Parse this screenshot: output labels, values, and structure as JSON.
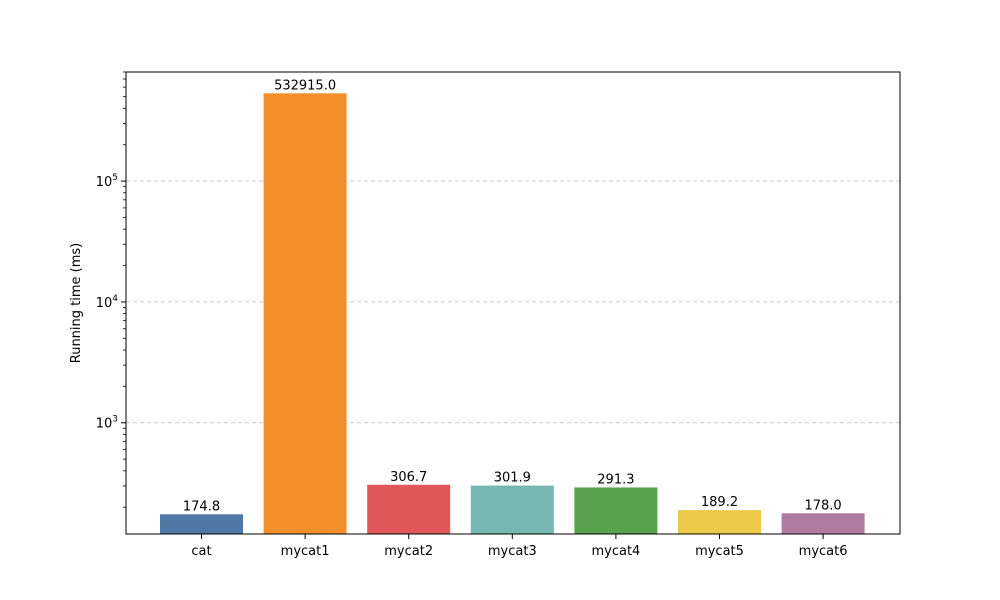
{
  "chart_data": {
    "type": "bar",
    "categories": [
      "cat",
      "mycat1",
      "mycat2",
      "mycat3",
      "mycat4",
      "mycat5",
      "mycat6"
    ],
    "values": [
      174.8,
      532915.0,
      306.7,
      301.9,
      291.3,
      189.2,
      178.0
    ],
    "value_labels": [
      "174.8",
      "532915.0",
      "306.7",
      "301.9",
      "291.3",
      "189.2",
      "178.0"
    ],
    "colors": [
      "#4e79a7",
      "#f28e2b",
      "#e15759",
      "#76b7b2",
      "#59a14f",
      "#edc948",
      "#b07aa1"
    ],
    "title": "",
    "xlabel": "",
    "ylabel": "Running time (ms)",
    "yscale": "log",
    "ylim": [
      120,
      800000
    ],
    "y_major_ticks": [
      1000,
      10000,
      100000
    ],
    "y_tick_labels": [
      {
        "base": "10",
        "exp": "3"
      },
      {
        "base": "10",
        "exp": "4"
      },
      {
        "base": "10",
        "exp": "5"
      }
    ],
    "grid": "y-major-dashed",
    "grid_color": "#cccccc",
    "legend": "none"
  }
}
